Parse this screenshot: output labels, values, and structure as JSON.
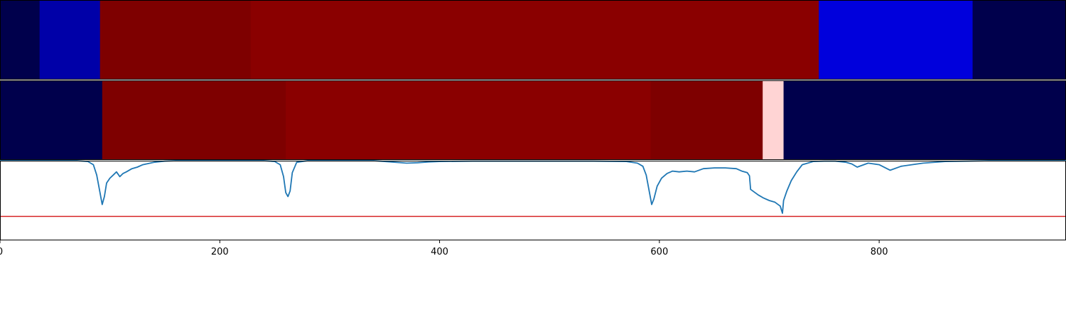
{
  "chart_data": {
    "type": "heatmap",
    "title": "",
    "xlabel": "",
    "ylabel": "",
    "xlim": [
      0,
      970
    ],
    "x_ticks": [
      {
        "value": 0,
        "label": "0"
      },
      {
        "value": 200,
        "label": "200"
      },
      {
        "value": 400,
        "label": "400"
      },
      {
        "value": 600,
        "label": "600"
      },
      {
        "value": 800,
        "label": "800"
      }
    ],
    "segment_rows": [
      {
        "segments": [
          {
            "start": 0,
            "end": 36,
            "color": "#00004c"
          },
          {
            "start": 36,
            "end": 91,
            "color": "#0000a8"
          },
          {
            "start": 91,
            "end": 228,
            "color": "#7e0000"
          },
          {
            "start": 228,
            "end": 745,
            "color": "#8a0000"
          },
          {
            "start": 745,
            "end": 885,
            "color": "#0000dc"
          },
          {
            "start": 885,
            "end": 970,
            "color": "#00004c"
          }
        ]
      },
      {
        "segments": [
          {
            "start": 0,
            "end": 93,
            "color": "#00004c"
          },
          {
            "start": 93,
            "end": 260,
            "color": "#7e0000"
          },
          {
            "start": 260,
            "end": 592,
            "color": "#8a0000"
          },
          {
            "start": 592,
            "end": 694,
            "color": "#7e0000"
          },
          {
            "start": 694,
            "end": 713,
            "color": "#ffd4d4"
          },
          {
            "start": 713,
            "end": 970,
            "color": "#00004c"
          }
        ]
      }
    ],
    "line_panel": {
      "ylim": [
        0,
        1
      ],
      "threshold": 0.3,
      "threshold_color": "#d62728",
      "line_color": "#1f77b4",
      "series": [
        {
          "x": [
            0,
            70,
            80,
            85,
            88,
            91,
            93,
            95,
            97,
            100,
            103,
            106,
            109,
            112,
            115,
            120,
            125,
            130,
            140,
            150,
            160,
            170,
            180,
            200,
            220,
            240,
            250,
            255,
            258,
            260,
            262,
            264,
            266,
            270,
            280,
            300,
            320,
            340,
            360,
            370,
            380,
            390,
            400,
            430,
            460,
            500,
            540,
            570,
            580,
            585,
            588,
            591,
            593,
            595,
            598,
            602,
            607,
            612,
            618,
            625,
            632,
            640,
            650,
            660,
            670,
            675,
            680,
            682,
            683,
            690,
            695,
            700,
            705,
            710,
            712,
            713,
            716,
            720,
            725,
            730,
            740,
            750,
            760,
            770,
            775,
            780,
            790,
            800,
            810,
            820,
            840,
            860,
            880,
            900,
            930,
            970
          ],
          "y": [
            1.0,
            1.0,
            0.99,
            0.95,
            0.82,
            0.6,
            0.45,
            0.55,
            0.72,
            0.78,
            0.82,
            0.86,
            0.8,
            0.84,
            0.86,
            0.9,
            0.92,
            0.95,
            0.98,
            0.995,
            1.0,
            1.0,
            1.0,
            1.0,
            1.0,
            1.0,
            0.99,
            0.95,
            0.8,
            0.6,
            0.55,
            0.62,
            0.85,
            0.98,
            1.0,
            1.0,
            1.0,
            1.0,
            0.98,
            0.97,
            0.975,
            0.985,
            0.99,
            0.995,
            0.995,
            0.995,
            0.995,
            0.99,
            0.97,
            0.93,
            0.82,
            0.6,
            0.45,
            0.52,
            0.68,
            0.78,
            0.84,
            0.87,
            0.86,
            0.87,
            0.86,
            0.9,
            0.91,
            0.91,
            0.9,
            0.87,
            0.85,
            0.81,
            0.64,
            0.57,
            0.53,
            0.5,
            0.48,
            0.43,
            0.34,
            0.5,
            0.62,
            0.75,
            0.86,
            0.95,
            0.99,
            0.995,
            0.995,
            0.98,
            0.96,
            0.92,
            0.97,
            0.95,
            0.88,
            0.93,
            0.97,
            0.99,
            0.995,
            1.0,
            1.0,
            1.0
          ]
        }
      ]
    }
  }
}
